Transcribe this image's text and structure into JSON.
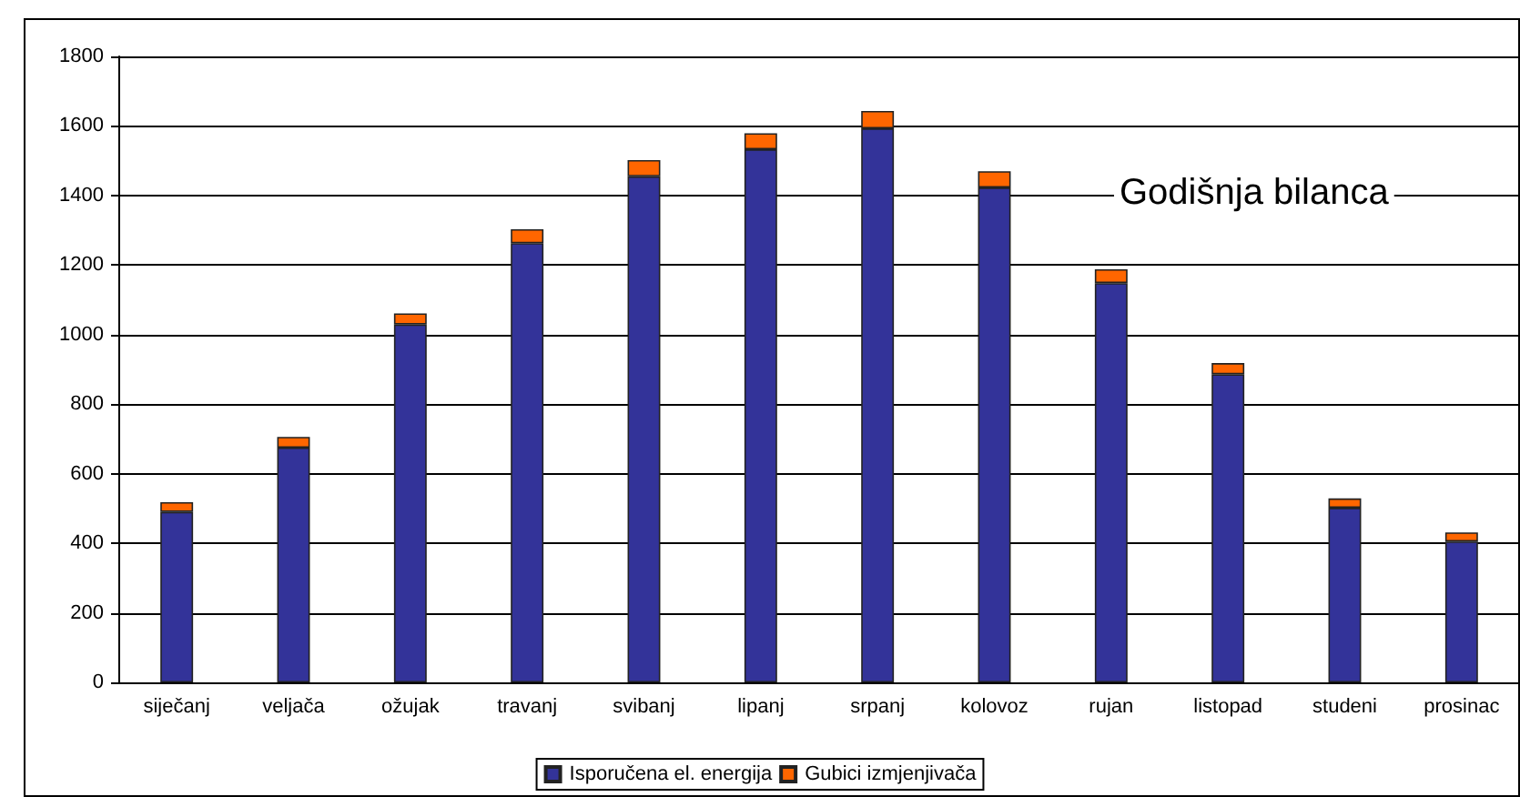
{
  "chart_data": {
    "type": "bar",
    "title": "Godišnja bilanca",
    "stacked": true,
    "categories": [
      "siječanj",
      "veljača",
      "ožujak",
      "travanj",
      "svibanj",
      "lipanj",
      "srpanj",
      "kolovoz",
      "rujan",
      "listopad",
      "studeni",
      "prosinac"
    ],
    "series": [
      {
        "name": "Isporučena el. energija",
        "color": "#333399",
        "values": [
          490,
          675,
          1029,
          1263,
          1455,
          1533,
          1593,
          1423,
          1148,
          886,
          502,
          405
        ]
      },
      {
        "name": "Gubici izmjenjivača",
        "color": "#ff6600",
        "values": [
          28,
          31,
          32,
          40,
          47,
          46,
          50,
          47,
          40,
          32,
          27,
          26
        ]
      }
    ],
    "ylim": [
      0,
      1800
    ],
    "yticks": [
      0,
      200,
      400,
      600,
      800,
      1000,
      1200,
      1400,
      1600,
      1800
    ],
    "grid": "y",
    "legend": "bottom"
  }
}
